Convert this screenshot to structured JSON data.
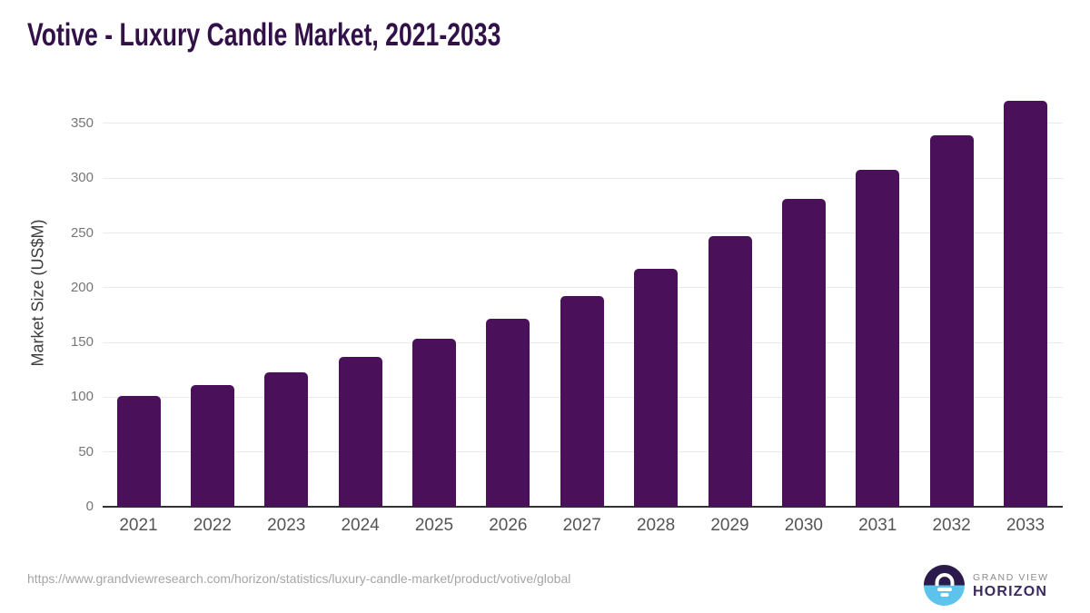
{
  "title": "Votive - Luxury Candle Market, 2021-2033",
  "chart_data": {
    "type": "bar",
    "title": "Votive - Luxury Candle Market, 2021-2033",
    "categories": [
      "2021",
      "2022",
      "2023",
      "2024",
      "2025",
      "2026",
      "2027",
      "2028",
      "2029",
      "2030",
      "2031",
      "2032",
      "2033"
    ],
    "values": [
      101,
      111,
      123,
      137,
      153,
      172,
      192,
      217,
      247,
      281,
      308,
      339,
      371
    ],
    "xlabel": "",
    "ylabel": "Market Size (US$M)",
    "ylim": [
      0,
      380
    ],
    "yticks": [
      0,
      50,
      100,
      150,
      200,
      250,
      300,
      350
    ],
    "grid": true,
    "legend": "none",
    "bar_color": "#4a1059"
  },
  "colors": {
    "title": "#321148",
    "bar": "#4a1059",
    "gridline": "#eaeaea",
    "axis_line": "#333333",
    "y_tick_label": "#767676",
    "x_tick_label": "#555555",
    "url_text": "#a5a5a5",
    "logo_purple": "#2b1b4b",
    "logo_blue": "#5ec3ea",
    "logo_horizon_text": "#3b2a5e",
    "logo_grandview_text": "#8c8c8c"
  },
  "footer": {
    "source_url": "https://www.grandviewresearch.com/horizon/statistics/luxury-candle-market/product/votive/global",
    "logo": {
      "line1": "GRAND VIEW",
      "line2": "HORIZON"
    }
  }
}
